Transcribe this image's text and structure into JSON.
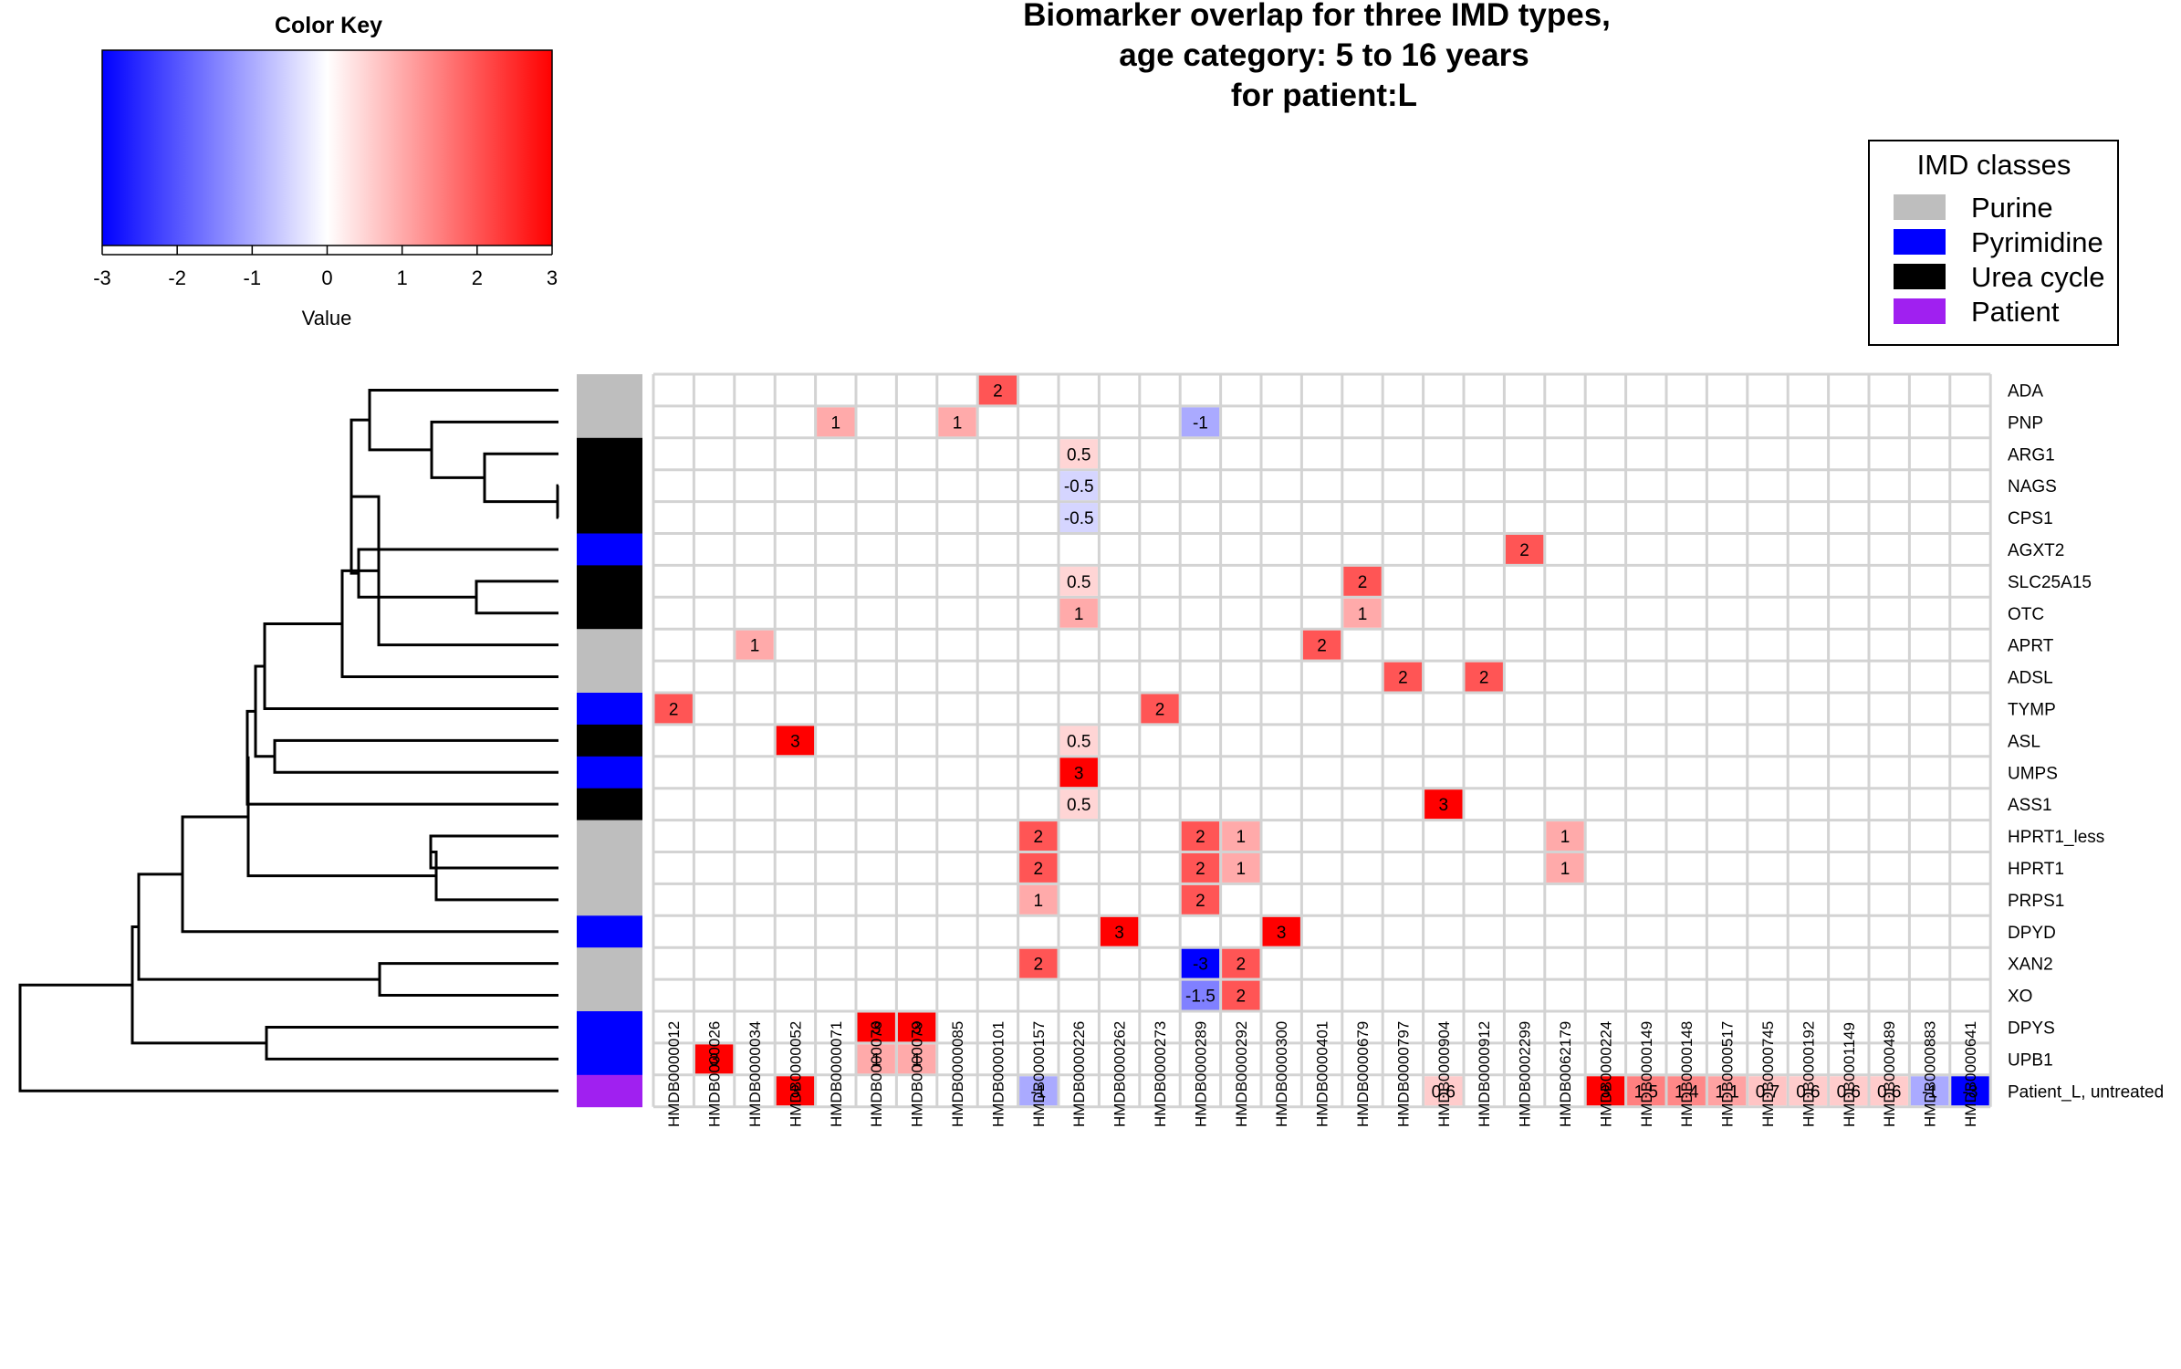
{
  "chart_data": {
    "type": "heatmap",
    "title_lines": [
      "Biomarker overlap for three IMD types,",
      "age category: 5 to 16 years",
      "for patient:L"
    ],
    "columns": [
      "HMDB0000012",
      "HMDB0000026",
      "HMDB0000034",
      "HMDB0000052",
      "HMDB0000071",
      "HMDB0000076",
      "HMDB0000079",
      "HMDB0000085",
      "HMDB0000101",
      "HMDB0000157",
      "HMDB0000226",
      "HMDB0000262",
      "HMDB0000273",
      "HMDB0000289",
      "HMDB0000292",
      "HMDB0000300",
      "HMDB0000401",
      "HMDB0000679",
      "HMDB0000797",
      "HMDB0000904",
      "HMDB0000912",
      "HMDB0002299",
      "HMDB0062179",
      "HMDB0000224",
      "HMDB0000149",
      "HMDB0000148",
      "HMDB0000517",
      "HMDB0000745",
      "HMDB0000192",
      "HMDB0001149",
      "HMDB0000489",
      "HMDB0000883",
      "HMDB0000641"
    ],
    "rows": [
      "ADA",
      "PNP",
      "ARG1",
      "NAGS",
      "CPS1",
      "AGXT2",
      "SLC25A15",
      "OTC",
      "APRT",
      "ADSL",
      "TYMP",
      "ASL",
      "UMPS",
      "ASS1",
      "HPRT1_less",
      "HPRT1",
      "PRPS1",
      "DPYD",
      "XAN2",
      "XO",
      "DPYS",
      "UPB1",
      "Patient_L, untreated"
    ],
    "row_classes": [
      "Purine",
      "Purine",
      "Urea cycle",
      "Urea cycle",
      "Urea cycle",
      "Pyrimidine",
      "Urea cycle",
      "Urea cycle",
      "Purine",
      "Purine",
      "Pyrimidine",
      "Urea cycle",
      "Pyrimidine",
      "Urea cycle",
      "Purine",
      "Purine",
      "Purine",
      "Pyrimidine",
      "Purine",
      "Purine",
      "Pyrimidine",
      "Pyrimidine",
      "Patient"
    ],
    "cells": [
      {
        "row": 0,
        "col": 8,
        "value": 2
      },
      {
        "row": 1,
        "col": 4,
        "value": 1
      },
      {
        "row": 1,
        "col": 7,
        "value": 1
      },
      {
        "row": 1,
        "col": 13,
        "value": -1
      },
      {
        "row": 2,
        "col": 10,
        "value": 0.5
      },
      {
        "row": 3,
        "col": 10,
        "value": -0.5
      },
      {
        "row": 4,
        "col": 10,
        "value": -0.5
      },
      {
        "row": 5,
        "col": 21,
        "value": 2
      },
      {
        "row": 6,
        "col": 10,
        "value": 0.5
      },
      {
        "row": 6,
        "col": 17,
        "value": 2
      },
      {
        "row": 7,
        "col": 10,
        "value": 1
      },
      {
        "row": 7,
        "col": 17,
        "value": 1
      },
      {
        "row": 8,
        "col": 2,
        "value": 1
      },
      {
        "row": 8,
        "col": 16,
        "value": 2
      },
      {
        "row": 9,
        "col": 18,
        "value": 2
      },
      {
        "row": 9,
        "col": 20,
        "value": 2
      },
      {
        "row": 10,
        "col": 0,
        "value": 2
      },
      {
        "row": 10,
        "col": 12,
        "value": 2
      },
      {
        "row": 11,
        "col": 3,
        "value": 3
      },
      {
        "row": 11,
        "col": 10,
        "value": 0.5
      },
      {
        "row": 12,
        "col": 10,
        "value": 3
      },
      {
        "row": 13,
        "col": 10,
        "value": 0.5
      },
      {
        "row": 13,
        "col": 19,
        "value": 3
      },
      {
        "row": 14,
        "col": 9,
        "value": 2
      },
      {
        "row": 14,
        "col": 13,
        "value": 2
      },
      {
        "row": 14,
        "col": 14,
        "value": 1
      },
      {
        "row": 14,
        "col": 22,
        "value": 1
      },
      {
        "row": 15,
        "col": 9,
        "value": 2
      },
      {
        "row": 15,
        "col": 13,
        "value": 2
      },
      {
        "row": 15,
        "col": 14,
        "value": 1
      },
      {
        "row": 15,
        "col": 22,
        "value": 1
      },
      {
        "row": 16,
        "col": 9,
        "value": 1
      },
      {
        "row": 16,
        "col": 13,
        "value": 2
      },
      {
        "row": 17,
        "col": 11,
        "value": 3
      },
      {
        "row": 17,
        "col": 15,
        "value": 3
      },
      {
        "row": 18,
        "col": 9,
        "value": 2
      },
      {
        "row": 18,
        "col": 13,
        "value": -3
      },
      {
        "row": 18,
        "col": 14,
        "value": 2
      },
      {
        "row": 19,
        "col": 13,
        "value": -1.5
      },
      {
        "row": 19,
        "col": 14,
        "value": 2
      },
      {
        "row": 20,
        "col": 5,
        "value": 3
      },
      {
        "row": 20,
        "col": 6,
        "value": 3
      },
      {
        "row": 21,
        "col": 1,
        "value": 3
      },
      {
        "row": 21,
        "col": 5,
        "value": 1
      },
      {
        "row": 21,
        "col": 6,
        "value": 1
      },
      {
        "row": 22,
        "col": 3,
        "value": 3
      },
      {
        "row": 22,
        "col": 9,
        "value": -1
      },
      {
        "row": 22,
        "col": 19,
        "value": 0.6
      },
      {
        "row": 22,
        "col": 23,
        "value": 3
      },
      {
        "row": 22,
        "col": 24,
        "value": 1.5
      },
      {
        "row": 22,
        "col": 25,
        "value": 1.4
      },
      {
        "row": 22,
        "col": 26,
        "value": 1.1
      },
      {
        "row": 22,
        "col": 27,
        "value": 0.7
      },
      {
        "row": 22,
        "col": 28,
        "value": 0.6
      },
      {
        "row": 22,
        "col": 29,
        "value": 0.6
      },
      {
        "row": 22,
        "col": 30,
        "value": 0.6
      },
      {
        "row": 22,
        "col": 31,
        "value": -1
      },
      {
        "row": 22,
        "col": 32,
        "value": -3
      }
    ],
    "color_key": {
      "title": "Color Key",
      "xlabel": "Value",
      "range": [
        -3,
        3
      ],
      "ticks": [
        "-3",
        "-2",
        "-1",
        "0",
        "1",
        "2",
        "3"
      ],
      "low_color": "#0000ff",
      "mid_color": "#ffffff",
      "high_color": "#ff0000"
    },
    "legend": {
      "title": "IMD classes",
      "placement": "top-right",
      "items": [
        {
          "label": "Purine",
          "color": "#bebebe"
        },
        {
          "label": "Pyrimidine",
          "color": "#0000ff"
        },
        {
          "label": "Urea cycle",
          "color": "#000000"
        },
        {
          "label": "Patient",
          "color": "#a020f0"
        }
      ]
    },
    "grid": true,
    "grid_color": "#d3d3d3",
    "row_dendrogram": true
  }
}
